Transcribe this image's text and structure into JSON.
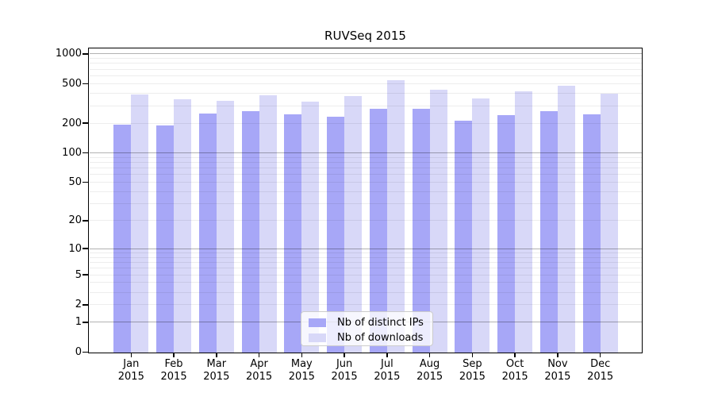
{
  "chart_data": {
    "type": "bar",
    "title": "RUVSeq 2015",
    "categories": [
      "Jan 2015",
      "Feb 2015",
      "Mar 2015",
      "Apr 2015",
      "May 2015",
      "Jun 2015",
      "Jul 2015",
      "Aug 2015",
      "Sep 2015",
      "Oct 2015",
      "Nov 2015",
      "Dec 2015"
    ],
    "series": [
      {
        "name": "Nb of distinct IPs",
        "color": "#a7a7f7",
        "values": [
          195,
          189,
          250,
          265,
          245,
          233,
          281,
          280,
          210,
          243,
          265,
          245
        ]
      },
      {
        "name": "Nb of downloads",
        "color": "#d8d8f8",
        "values": [
          388,
          351,
          338,
          384,
          331,
          377,
          548,
          437,
          358,
          417,
          474,
          399
        ]
      }
    ],
    "xlabel": "",
    "ylabel": "",
    "y_axis": {
      "scale": "log1p",
      "tick_values": [
        0,
        1,
        2,
        5,
        10,
        20,
        50,
        100,
        200,
        500,
        1000
      ],
      "tick_labels": [
        "0",
        "1",
        "2",
        "5",
        "10",
        "20",
        "50",
        "100",
        "200",
        "500",
        "1000"
      ],
      "ylim": [
        0,
        1150
      ]
    },
    "grid": "horizontal; faint minor lines at 2-9 per decade, darker lines at powers of 10, drawn over bars",
    "legend_position": "bottom-center inside plot",
    "bar_style": "paired side-by-side bars per month, no gap within pair"
  },
  "colors": {
    "background": "#ffffff",
    "frame": "#000000",
    "bar_distinct_ips": "#a7a7f7",
    "bar_downloads": "#d8d8f8",
    "legend_border": "#cccccc"
  }
}
